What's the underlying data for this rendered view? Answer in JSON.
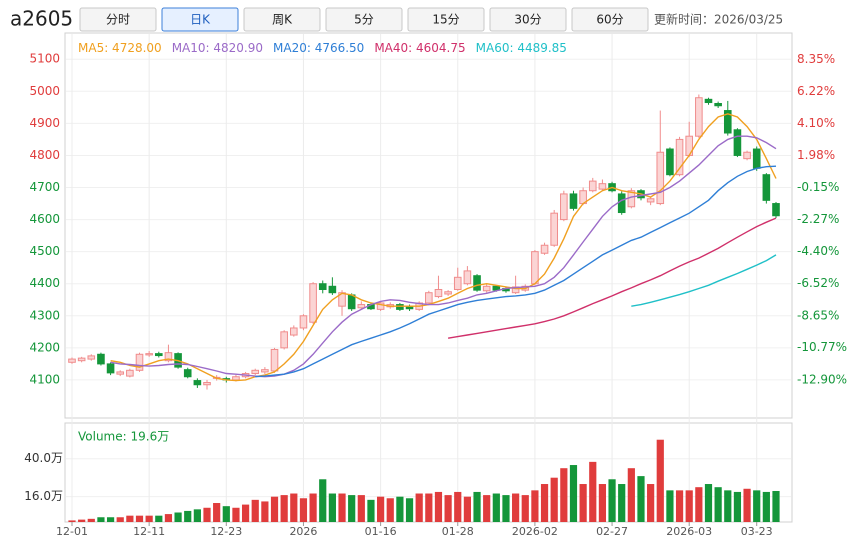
{
  "toolbar": {
    "symbol": "a2605",
    "tabs": [
      "分时",
      "日K",
      "周K",
      "5分",
      "15分",
      "30分",
      "60分"
    ],
    "active_tab": 1,
    "update_time": "更新时间：2026/03/25"
  },
  "chart_data": [
    {
      "type": "candlestick",
      "categories": [
        "12-01",
        null,
        null,
        null,
        null,
        null,
        null,
        null,
        "12-11",
        null,
        null,
        null,
        null,
        null,
        null,
        null,
        "12-23",
        null,
        null,
        null,
        null,
        null,
        null,
        null,
        "2026",
        null,
        null,
        null,
        null,
        null,
        null,
        null,
        "01-16",
        null,
        null,
        null,
        null,
        null,
        null,
        null,
        "01-28",
        null,
        null,
        null,
        null,
        null,
        null,
        null,
        "2026-02",
        null,
        null,
        null,
        null,
        null,
        null,
        null,
        "02-27",
        null,
        null,
        null,
        null,
        null,
        null,
        null,
        "2026-03",
        null,
        null,
        null,
        null,
        null,
        null,
        "03-23",
        null,
        null
      ],
      "open": [
        4155,
        4160,
        4165,
        4180,
        4150,
        4118,
        4112,
        4130,
        4178,
        4182,
        4160,
        4182,
        4132,
        4098,
        4085,
        4105,
        4104,
        4100,
        4110,
        4120,
        4125,
        4128,
        4200,
        4240,
        4262,
        4280,
        4400,
        4392,
        4330,
        4365,
        4325,
        4335,
        4320,
        4328,
        4335,
        4330,
        4320,
        4340,
        4360,
        4368,
        4382,
        4400,
        4425,
        4378,
        4392,
        4385,
        4372,
        4380,
        4400,
        4495,
        4520,
        4600,
        4680,
        4650,
        4690,
        4695,
        4712,
        4680,
        4640,
        4690,
        4655,
        4650,
        4820,
        4740,
        4800,
        4860,
        4975,
        4962,
        4940,
        4880,
        4790,
        4820,
        4740,
        4650
      ],
      "high": [
        4170,
        4172,
        4180,
        4185,
        4155,
        4130,
        4135,
        4185,
        4190,
        4188,
        4210,
        4186,
        4138,
        4105,
        4100,
        4115,
        4110,
        4116,
        4125,
        4135,
        4140,
        4200,
        4255,
        4270,
        4305,
        4405,
        4410,
        4420,
        4380,
        4370,
        4345,
        4340,
        4345,
        4342,
        4340,
        4335,
        4345,
        4378,
        4425,
        4380,
        4450,
        4455,
        4430,
        4398,
        4396,
        4390,
        4425,
        4398,
        4505,
        4528,
        4630,
        4690,
        4690,
        4700,
        4730,
        4725,
        4718,
        4688,
        4698,
        4695,
        4672,
        4940,
        4825,
        4858,
        4905,
        4990,
        4980,
        4968,
        4970,
        4885,
        4815,
        4828,
        4745,
        4655
      ],
      "low": [
        4150,
        4155,
        4160,
        4145,
        4115,
        4112,
        4108,
        4125,
        4172,
        4170,
        4155,
        4135,
        4105,
        4075,
        4070,
        4098,
        4092,
        4095,
        4105,
        4115,
        4118,
        4122,
        4195,
        4235,
        4255,
        4275,
        4370,
        4365,
        4300,
        4315,
        4320,
        4318,
        4315,
        4322,
        4315,
        4315,
        4315,
        4335,
        4355,
        4362,
        4378,
        4395,
        4375,
        4372,
        4375,
        4372,
        4368,
        4375,
        4395,
        4490,
        4515,
        4595,
        4628,
        4645,
        4685,
        4690,
        4685,
        4615,
        4635,
        4660,
        4645,
        4645,
        4735,
        4735,
        4795,
        4855,
        4958,
        4948,
        4862,
        4795,
        4785,
        4752,
        4650,
        4605
      ],
      "close": [
        4165,
        4168,
        4175,
        4150,
        4122,
        4125,
        4130,
        4180,
        4182,
        4176,
        4185,
        4140,
        4110,
        4085,
        4092,
        4108,
        4100,
        4110,
        4120,
        4130,
        4132,
        4195,
        4250,
        4262,
        4300,
        4400,
        4382,
        4372,
        4372,
        4322,
        4335,
        4322,
        4340,
        4335,
        4320,
        4322,
        4340,
        4372,
        4382,
        4375,
        4420,
        4440,
        4380,
        4392,
        4380,
        4378,
        4390,
        4392,
        4500,
        4520,
        4620,
        4680,
        4635,
        4690,
        4720,
        4712,
        4690,
        4622,
        4690,
        4668,
        4665,
        4810,
        4740,
        4850,
        4860,
        4980,
        4965,
        4955,
        4870,
        4800,
        4810,
        4760,
        4660,
        4612
      ],
      "up_color": "#f08c8c",
      "down_color": "#14963a",
      "series": [
        {
          "name": "MA5: 4728.00",
          "color": "#f0a020",
          "values": [
            null,
            null,
            null,
            null,
            4160,
            4155,
            4145,
            4140,
            4150,
            4160,
            4165,
            4160,
            4150,
            4135,
            4120,
            4105,
            4100,
            4098,
            4100,
            4110,
            4115,
            4125,
            4150,
            4180,
            4220,
            4270,
            4320,
            4350,
            4370,
            4365,
            4350,
            4340,
            4335,
            4330,
            4330,
            4330,
            4330,
            4335,
            4345,
            4355,
            4370,
            4385,
            4395,
            4400,
            4395,
            4390,
            4385,
            4385,
            4400,
            4430,
            4480,
            4540,
            4610,
            4650,
            4670,
            4690,
            4700,
            4690,
            4685,
            4680,
            4670,
            4690,
            4720,
            4760,
            4800,
            4850,
            4890,
            4920,
            4930,
            4920,
            4890,
            4850,
            4790,
            4728
          ]
        },
        {
          "name": "MA10: 4820.90",
          "color": "#9b6bc8",
          "values": [
            null,
            null,
            null,
            null,
            4155,
            4150,
            4148,
            4145,
            4143,
            4145,
            4148,
            4150,
            4148,
            4142,
            4135,
            4128,
            4120,
            4118,
            4115,
            4112,
            4110,
            4112,
            4118,
            4130,
            4150,
            4180,
            4215,
            4250,
            4280,
            4305,
            4320,
            4335,
            4345,
            4350,
            4348,
            4342,
            4338,
            4335,
            4335,
            4340,
            4348,
            4355,
            4365,
            4370,
            4378,
            4385,
            4388,
            4390,
            4392,
            4400,
            4420,
            4450,
            4490,
            4530,
            4570,
            4610,
            4640,
            4660,
            4670,
            4675,
            4680,
            4685,
            4700,
            4720,
            4745,
            4770,
            4800,
            4830,
            4850,
            4860,
            4860,
            4855,
            4840,
            4820.9
          ]
        },
        {
          "name": "MA20: 4766.50",
          "color": "#2f7fd6",
          "values": [
            null,
            null,
            null,
            null,
            null,
            null,
            null,
            null,
            null,
            null,
            null,
            null,
            null,
            null,
            null,
            null,
            null,
            null,
            null,
            4110,
            4112,
            4115,
            4118,
            4125,
            4135,
            4150,
            4165,
            4180,
            4195,
            4210,
            4220,
            4230,
            4240,
            4250,
            4262,
            4275,
            4290,
            4305,
            4315,
            4325,
            4335,
            4342,
            4348,
            4352,
            4356,
            4360,
            4362,
            4365,
            4370,
            4380,
            4395,
            4410,
            4430,
            4450,
            4470,
            4490,
            4505,
            4520,
            4535,
            4545,
            4560,
            4575,
            4590,
            4605,
            4620,
            4640,
            4660,
            4690,
            4715,
            4735,
            4750,
            4760,
            4765,
            4766.5
          ]
        },
        {
          "name": "MA40: 4604.75",
          "color": "#d0306a",
          "values": [
            null,
            null,
            null,
            null,
            null,
            null,
            null,
            null,
            null,
            null,
            null,
            null,
            null,
            null,
            null,
            null,
            null,
            null,
            null,
            null,
            null,
            null,
            null,
            null,
            null,
            null,
            null,
            null,
            null,
            null,
            null,
            null,
            null,
            null,
            null,
            null,
            null,
            null,
            null,
            4230,
            4235,
            4240,
            4245,
            4250,
            4255,
            4260,
            4265,
            4270,
            4275,
            4282,
            4290,
            4300,
            4312,
            4325,
            4338,
            4350,
            4362,
            4375,
            4387,
            4400,
            4412,
            4425,
            4440,
            4455,
            4468,
            4480,
            4495,
            4510,
            4528,
            4545,
            4562,
            4578,
            4592,
            4604.75
          ]
        },
        {
          "name": "MA60: 4489.85",
          "color": "#20c0c8",
          "values": [
            null,
            null,
            null,
            null,
            null,
            null,
            null,
            null,
            null,
            null,
            null,
            null,
            null,
            null,
            null,
            null,
            null,
            null,
            null,
            null,
            null,
            null,
            null,
            null,
            null,
            null,
            null,
            null,
            null,
            null,
            null,
            null,
            null,
            null,
            null,
            null,
            null,
            null,
            null,
            null,
            null,
            null,
            null,
            null,
            null,
            null,
            null,
            null,
            null,
            null,
            null,
            null,
            null,
            null,
            null,
            null,
            null,
            null,
            4330,
            4335,
            4342,
            4350,
            4358,
            4366,
            4375,
            4385,
            4395,
            4408,
            4420,
            4432,
            4445,
            4458,
            4472,
            4489.85
          ]
        }
      ],
      "ylim": [
        4000,
        5160
      ],
      "yticks": [
        5100,
        5000,
        4900,
        4800,
        4700,
        4600,
        4500,
        4400,
        4300,
        4200,
        4100
      ],
      "y2lim": [
        -15.03,
        9.63
      ],
      "y2ticks": [
        {
          "value": 8.35,
          "label": "8.35%"
        },
        {
          "value": 6.22,
          "label": "6.22%"
        },
        {
          "value": 4.1,
          "label": "4.10%"
        },
        {
          "value": 1.98,
          "label": "1.98%"
        },
        {
          "value": -0.15,
          "label": "-0.15%"
        },
        {
          "value": -2.27,
          "label": "-2.27%"
        },
        {
          "value": -4.4,
          "label": "-4.40%"
        },
        {
          "value": -6.52,
          "label": "-6.52%"
        },
        {
          "value": -8.65,
          "label": "-8.65%"
        },
        {
          "value": -10.77,
          "label": "-10.77%"
        },
        {
          "value": -12.9,
          "label": "-12.90%"
        }
      ],
      "grid": true
    },
    {
      "type": "bar",
      "title": "Volume: 19.6万",
      "values": [
        1,
        1.5,
        2,
        3,
        3,
        3,
        4,
        4,
        4,
        4,
        5,
        6,
        7,
        8,
        9,
        12,
        10,
        9,
        11,
        14,
        13,
        16,
        17,
        18,
        15,
        18,
        27,
        18,
        18,
        17,
        17,
        14,
        16,
        15,
        16,
        15,
        18,
        18,
        19,
        17,
        19,
        16,
        19,
        17,
        18,
        17,
        18,
        17,
        20,
        24,
        28,
        34,
        36,
        24,
        38,
        24,
        27,
        24,
        34,
        29,
        24,
        52,
        20,
        20,
        20,
        22,
        24,
        22,
        20,
        19,
        21,
        20,
        19,
        19.6
      ],
      "ylim": [
        0,
        61.3
      ],
      "yticks": [
        {
          "value": 40,
          "label": "40.0万"
        },
        {
          "value": 16,
          "label": "16.0万"
        }
      ]
    }
  ]
}
